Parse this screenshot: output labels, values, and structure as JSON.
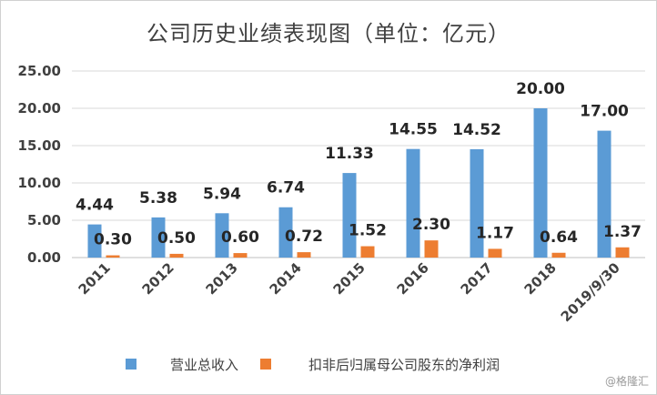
{
  "title": "公司历史业绩表现图（单位：亿元）",
  "watermark": "@格隆汇",
  "colors": {
    "revenue": "#5B9BD5",
    "profit": "#ED7D31",
    "grid": "#d9d9d9",
    "text": "#404040"
  },
  "chart_data": {
    "type": "bar",
    "categories": [
      "2011",
      "2012",
      "2013",
      "2014",
      "2015",
      "2016",
      "2017",
      "2018",
      "2019/9/30"
    ],
    "series": [
      {
        "name": "营业总收入",
        "values": [
          4.44,
          5.38,
          5.94,
          6.74,
          11.33,
          14.55,
          14.52,
          20.0,
          17.0
        ],
        "labels": [
          "4.44",
          "5.38",
          "5.94",
          "6.74",
          "11.33",
          "14.55",
          "14.52",
          "20.00",
          "17.00"
        ]
      },
      {
        "name": "扣非后归属母公司股东的净利润",
        "values": [
          0.3,
          0.5,
          0.6,
          0.72,
          1.52,
          2.3,
          1.17,
          0.64,
          1.37
        ],
        "labels": [
          "0.30",
          "0.50",
          "0.60",
          "0.72",
          "1.52",
          "2.30",
          "1.17",
          "0.64",
          "1.37"
        ]
      }
    ],
    "yticks": [
      "0.00",
      "5.00",
      "10.00",
      "15.00",
      "20.00",
      "25.00"
    ],
    "ylim": [
      0,
      25
    ],
    "grid": true,
    "legend": "bottom",
    "xlabel": "",
    "ylabel": ""
  }
}
